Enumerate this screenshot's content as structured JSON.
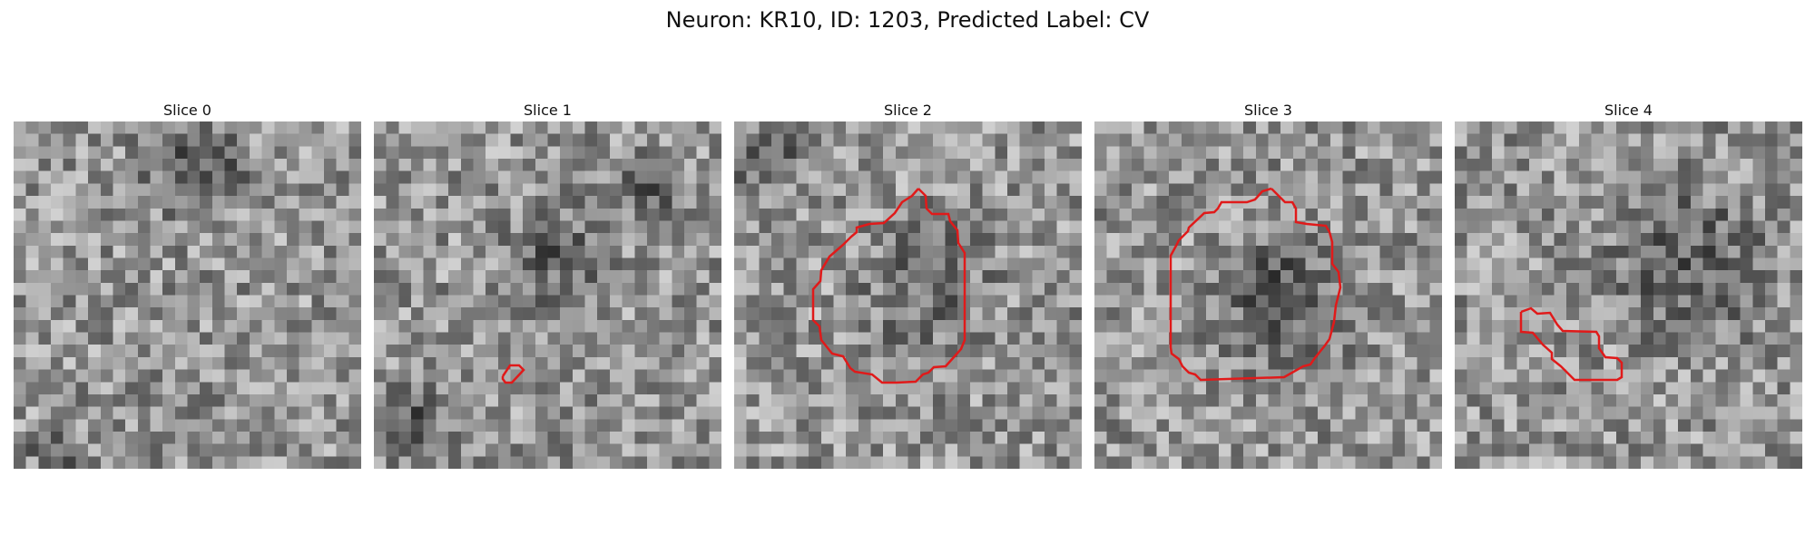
{
  "figure": {
    "title": "Neuron: KR10, ID: 1203, Predicted Label: CV"
  },
  "contour_color": "#e01a1a",
  "colormap": "gray",
  "panels": [
    {
      "label": "Slice 0",
      "has_contour": false
    },
    {
      "label": "Slice 1",
      "has_contour": true
    },
    {
      "label": "Slice 2",
      "has_contour": true
    },
    {
      "label": "Slice 3",
      "has_contour": true
    },
    {
      "label": "Slice 4",
      "has_contour": true
    }
  ]
}
